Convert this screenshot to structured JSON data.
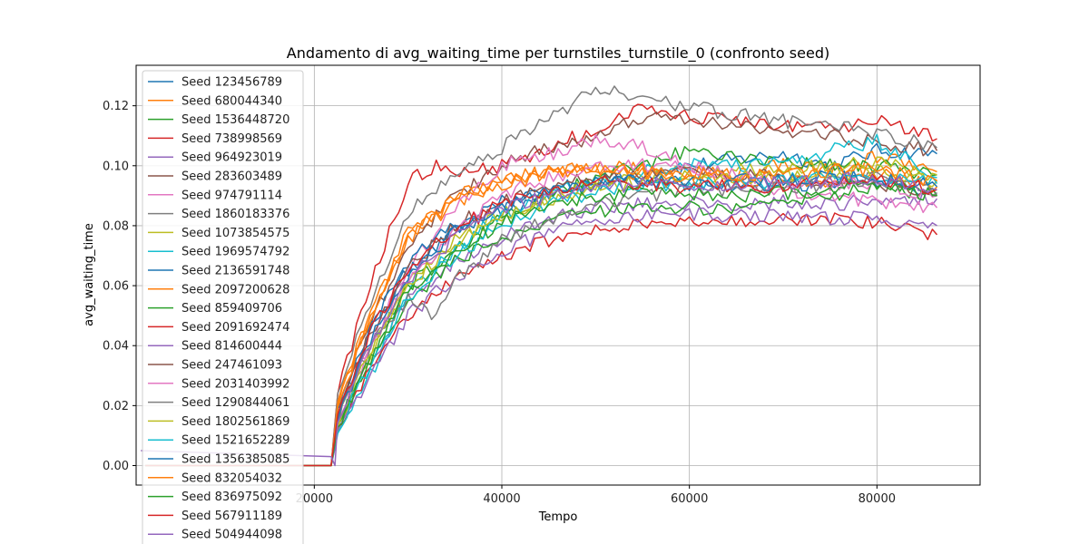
{
  "chart_data": {
    "type": "line",
    "title": "Andamento di avg_waiting_time per turnstiles_turnstile_0 (confronto seed)",
    "xlabel": "Tempo",
    "ylabel": "avg_waiting_time",
    "xlim": [
      1000,
      91000
    ],
    "ylim": [
      -0.0065,
      0.1335
    ],
    "x_ticks": [
      20000,
      40000,
      60000,
      80000
    ],
    "x_tick_labels": [
      "20000",
      "40000",
      "60000",
      "80000"
    ],
    "y_ticks": [
      0.0,
      0.02,
      0.04,
      0.06,
      0.08,
      0.1,
      0.12
    ],
    "y_tick_labels": [
      "0.00",
      "0.02",
      "0.04",
      "0.06",
      "0.08",
      "0.10",
      "0.12"
    ],
    "grid": true,
    "legend_position": "upper-left",
    "colors": [
      "#1f77b4",
      "#ff7f0e",
      "#2ca02c",
      "#d62728",
      "#9467bd",
      "#8c564b",
      "#e377c2",
      "#7f7f7f",
      "#bcbd22",
      "#17becf"
    ],
    "series": [
      {
        "name": "Seed 123456789",
        "x": [
          2000,
          21800,
          22500,
          26000,
          30000,
          35000,
          40000,
          45000,
          50000,
          55000,
          60000,
          65000,
          70000,
          75000,
          80000,
          86400
        ],
        "values": [
          0.0,
          0.0,
          0.018,
          0.045,
          0.065,
          0.078,
          0.085,
          0.09,
          0.094,
          0.097,
          0.1,
          0.102,
          0.104,
          0.1,
          0.105,
          0.104
        ]
      },
      {
        "name": "Seed 680044340",
        "x": [
          2000,
          21800,
          22500,
          26000,
          30000,
          35000,
          40000,
          45000,
          50000,
          55000,
          60000,
          65000,
          70000,
          75000,
          80000,
          86400
        ],
        "values": [
          0.0,
          0.0,
          0.022,
          0.05,
          0.075,
          0.088,
          0.095,
          0.098,
          0.1,
          0.099,
          0.098,
          0.097,
          0.1,
          0.098,
          0.103,
          0.098
        ]
      },
      {
        "name": "Seed 1536448720",
        "x": [
          2000,
          21800,
          22500,
          26000,
          30000,
          35000,
          40000,
          45000,
          50000,
          55000,
          60000,
          65000,
          70000,
          75000,
          80000,
          86400
        ],
        "values": [
          0.0,
          0.0,
          0.015,
          0.04,
          0.06,
          0.072,
          0.082,
          0.09,
          0.096,
          0.1,
          0.105,
          0.103,
          0.102,
          0.1,
          0.1,
          0.097
        ]
      },
      {
        "name": "Seed 738998569",
        "x": [
          2000,
          21800,
          22500,
          26000,
          30000,
          33000,
          36000,
          40000,
          45000,
          50000,
          55000,
          60000,
          65000,
          70000,
          75000,
          80000,
          86400
        ],
        "values": [
          0.0,
          0.0,
          0.025,
          0.06,
          0.095,
          0.1,
          0.098,
          0.1,
          0.106,
          0.112,
          0.12,
          0.116,
          0.115,
          0.113,
          0.112,
          0.115,
          0.109
        ]
      },
      {
        "name": "Seed 964923019",
        "x": [
          2000,
          21800,
          22500,
          26000,
          30000,
          35000,
          40000,
          45000,
          50000,
          55000,
          60000,
          65000,
          70000,
          75000,
          80000,
          86400
        ],
        "values": [
          0.0,
          0.0,
          0.012,
          0.035,
          0.055,
          0.068,
          0.076,
          0.082,
          0.086,
          0.087,
          0.088,
          0.087,
          0.088,
          0.087,
          0.089,
          0.089
        ]
      },
      {
        "name": "Seed 283603489",
        "x": [
          2000,
          21800,
          22500,
          26000,
          30000,
          35000,
          40000,
          45000,
          50000,
          55000,
          60000,
          65000,
          70000,
          75000,
          80000,
          86400
        ],
        "values": [
          0.0,
          0.0,
          0.02,
          0.048,
          0.072,
          0.09,
          0.1,
          0.106,
          0.11,
          0.116,
          0.116,
          0.113,
          0.112,
          0.11,
          0.108,
          0.105
        ]
      },
      {
        "name": "Seed 974791114",
        "x": [
          2000,
          21800,
          22500,
          26000,
          30000,
          35000,
          40000,
          45000,
          50000,
          55000,
          60000,
          65000,
          70000,
          75000,
          80000,
          86400
        ],
        "values": [
          0.0,
          0.0,
          0.016,
          0.042,
          0.066,
          0.085,
          0.1,
          0.104,
          0.108,
          0.106,
          0.1,
          0.095,
          0.092,
          0.09,
          0.088,
          0.086
        ]
      },
      {
        "name": "Seed 1860183376",
        "x": [
          2000,
          21800,
          22500,
          26000,
          30000,
          35000,
          40000,
          45000,
          50000,
          55000,
          60000,
          65000,
          70000,
          75000,
          80000,
          86400
        ],
        "values": [
          0.0,
          0.0,
          0.024,
          0.055,
          0.085,
          0.098,
          0.106,
          0.115,
          0.126,
          0.122,
          0.12,
          0.117,
          0.115,
          0.113,
          0.111,
          0.106
        ]
      },
      {
        "name": "Seed 1073854575",
        "x": [
          2000,
          21800,
          22500,
          26000,
          30000,
          35000,
          40000,
          45000,
          50000,
          55000,
          60000,
          65000,
          70000,
          75000,
          80000,
          86400
        ],
        "values": [
          0.0,
          0.0,
          0.014,
          0.038,
          0.06,
          0.075,
          0.084,
          0.09,
          0.094,
          0.096,
          0.097,
          0.098,
          0.099,
          0.1,
          0.101,
          0.097
        ]
      },
      {
        "name": "Seed 1969574792",
        "x": [
          2000,
          21800,
          22500,
          26000,
          30000,
          35000,
          40000,
          45000,
          50000,
          55000,
          60000,
          65000,
          70000,
          75000,
          80000,
          86400
        ],
        "values": [
          0.0,
          0.0,
          0.01,
          0.03,
          0.058,
          0.072,
          0.084,
          0.09,
          0.095,
          0.098,
          0.1,
          0.1,
          0.101,
          0.105,
          0.108,
          0.096
        ]
      },
      {
        "name": "Seed 2136591748",
        "x": [
          2000,
          21800,
          22500,
          26000,
          30000,
          35000,
          40000,
          45000,
          50000,
          55000,
          60000,
          65000,
          70000,
          75000,
          80000,
          86400
        ],
        "values": [
          0.0,
          0.0,
          0.018,
          0.046,
          0.068,
          0.08,
          0.088,
          0.092,
          0.095,
          0.095,
          0.094,
          0.094,
          0.093,
          0.094,
          0.095,
          0.091
        ]
      },
      {
        "name": "Seed 2097200628",
        "x": [
          2000,
          21800,
          22500,
          26000,
          30000,
          35000,
          40000,
          45000,
          50000,
          55000,
          60000,
          65000,
          70000,
          75000,
          80000,
          86400
        ],
        "values": [
          0.0,
          0.0,
          0.02,
          0.05,
          0.078,
          0.09,
          0.096,
          0.098,
          0.099,
          0.097,
          0.096,
          0.095,
          0.096,
          0.095,
          0.097,
          0.093
        ]
      },
      {
        "name": "Seed 859409706",
        "x": [
          2000,
          21800,
          22500,
          26000,
          30000,
          35000,
          40000,
          45000,
          50000,
          55000,
          60000,
          65000,
          70000,
          75000,
          80000,
          86400
        ],
        "values": [
          0.0,
          0.0,
          0.012,
          0.036,
          0.055,
          0.068,
          0.076,
          0.082,
          0.085,
          0.086,
          0.086,
          0.085,
          0.088,
          0.09,
          0.093,
          0.09
        ]
      },
      {
        "name": "Seed 2091692474",
        "x": [
          2000,
          21800,
          22500,
          26000,
          30000,
          35000,
          40000,
          45000,
          50000,
          55000,
          60000,
          65000,
          70000,
          75000,
          80000,
          86400
        ],
        "values": [
          0.0,
          0.0,
          0.012,
          0.032,
          0.05,
          0.062,
          0.07,
          0.075,
          0.078,
          0.08,
          0.081,
          0.081,
          0.082,
          0.082,
          0.081,
          0.077
        ]
      },
      {
        "name": "Seed 814600444",
        "x": [
          2000,
          21800,
          22500,
          26000,
          30000,
          35000,
          40000,
          45000,
          50000,
          55000,
          60000,
          65000,
          70000,
          75000,
          80000,
          86400
        ],
        "values": [
          0.0,
          0.0,
          0.01,
          0.03,
          0.05,
          0.063,
          0.072,
          0.078,
          0.082,
          0.083,
          0.084,
          0.083,
          0.083,
          0.082,
          0.083,
          0.08
        ]
      },
      {
        "name": "Seed 247461093",
        "x": [
          2000,
          21800,
          22500,
          26000,
          30000,
          35000,
          40000,
          45000,
          50000,
          55000,
          60000,
          65000,
          70000,
          75000,
          80000,
          86400
        ],
        "values": [
          0.0,
          0.0,
          0.018,
          0.044,
          0.066,
          0.08,
          0.088,
          0.093,
          0.096,
          0.097,
          0.098,
          0.097,
          0.096,
          0.095,
          0.094,
          0.09
        ]
      },
      {
        "name": "Seed 2031403992",
        "x": [
          2000,
          21800,
          22500,
          26000,
          30000,
          35000,
          40000,
          45000,
          50000,
          55000,
          60000,
          65000,
          70000,
          75000,
          80000,
          86400
        ],
        "values": [
          0.0,
          0.0,
          0.016,
          0.04,
          0.062,
          0.078,
          0.09,
          0.096,
          0.1,
          0.1,
          0.099,
          0.097,
          0.095,
          0.094,
          0.094,
          0.09
        ]
      },
      {
        "name": "Seed 1290844061",
        "x": [
          2000,
          21800,
          22500,
          26000,
          30000,
          33000,
          35000,
          40000,
          45000,
          50000,
          55000,
          60000,
          65000,
          70000,
          75000,
          80000,
          86400
        ],
        "values": [
          0.0,
          0.0,
          0.015,
          0.04,
          0.055,
          0.05,
          0.062,
          0.075,
          0.082,
          0.088,
          0.09,
          0.092,
          0.092,
          0.093,
          0.094,
          0.096,
          0.091
        ]
      },
      {
        "name": "Seed 1802561869",
        "x": [
          2000,
          21800,
          22500,
          26000,
          30000,
          35000,
          40000,
          45000,
          50000,
          55000,
          60000,
          65000,
          70000,
          75000,
          80000,
          86400
        ],
        "values": [
          0.0,
          0.0,
          0.014,
          0.038,
          0.06,
          0.074,
          0.083,
          0.089,
          0.093,
          0.095,
          0.096,
          0.096,
          0.097,
          0.097,
          0.098,
          0.095
        ]
      },
      {
        "name": "Seed 1521652289",
        "x": [
          2000,
          21800,
          22500,
          26000,
          30000,
          35000,
          40000,
          45000,
          50000,
          55000,
          60000,
          65000,
          70000,
          75000,
          80000,
          86400
        ],
        "values": [
          0.0,
          0.0,
          0.012,
          0.034,
          0.056,
          0.07,
          0.08,
          0.087,
          0.091,
          0.093,
          0.094,
          0.094,
          0.095,
          0.096,
          0.097,
          0.094
        ]
      },
      {
        "name": "Seed 1356385085",
        "x": [
          2000,
          21800,
          22500,
          26000,
          30000,
          35000,
          40000,
          45000,
          50000,
          55000,
          60000,
          65000,
          70000,
          75000,
          80000,
          86400
        ],
        "values": [
          0.0,
          0.0,
          0.016,
          0.042,
          0.064,
          0.078,
          0.086,
          0.091,
          0.094,
          0.095,
          0.095,
          0.095,
          0.095,
          0.096,
          0.096,
          0.093
        ]
      },
      {
        "name": "Seed 832054032",
        "x": [
          2000,
          21800,
          22500,
          26000,
          30000,
          35000,
          40000,
          45000,
          50000,
          55000,
          60000,
          65000,
          70000,
          75000,
          80000,
          86400
        ],
        "values": [
          0.0,
          0.0,
          0.02,
          0.05,
          0.076,
          0.088,
          0.094,
          0.097,
          0.098,
          0.098,
          0.097,
          0.097,
          0.097,
          0.098,
          0.099,
          0.095
        ]
      },
      {
        "name": "Seed 836975092",
        "x": [
          2000,
          21800,
          22500,
          26000,
          30000,
          35000,
          40000,
          45000,
          50000,
          55000,
          60000,
          65000,
          70000,
          75000,
          80000,
          86400
        ],
        "values": [
          0.0,
          0.0,
          0.013,
          0.036,
          0.058,
          0.072,
          0.081,
          0.087,
          0.09,
          0.091,
          0.091,
          0.09,
          0.091,
          0.092,
          0.093,
          0.09
        ]
      },
      {
        "name": "Seed 567911189",
        "x": [
          2000,
          21800,
          22500,
          26000,
          30000,
          35000,
          40000,
          45000,
          50000,
          55000,
          60000,
          65000,
          70000,
          75000,
          80000,
          86400
        ],
        "values": [
          0.0,
          0.0,
          0.017,
          0.044,
          0.066,
          0.079,
          0.087,
          0.092,
          0.094,
          0.094,
          0.093,
          0.093,
          0.093,
          0.094,
          0.095,
          0.092
        ]
      },
      {
        "name": "Seed 504944098",
        "x": [
          1500,
          21800,
          22200,
          22500,
          26000,
          30000,
          35000,
          40000,
          45000,
          50000,
          55000,
          60000,
          65000,
          70000,
          75000,
          80000,
          86400
        ],
        "values": [
          0.005,
          0.003,
          0.0,
          0.015,
          0.04,
          0.062,
          0.076,
          0.085,
          0.09,
          0.093,
          0.094,
          0.094,
          0.094,
          0.094,
          0.095,
          0.096,
          0.092
        ]
      }
    ]
  }
}
